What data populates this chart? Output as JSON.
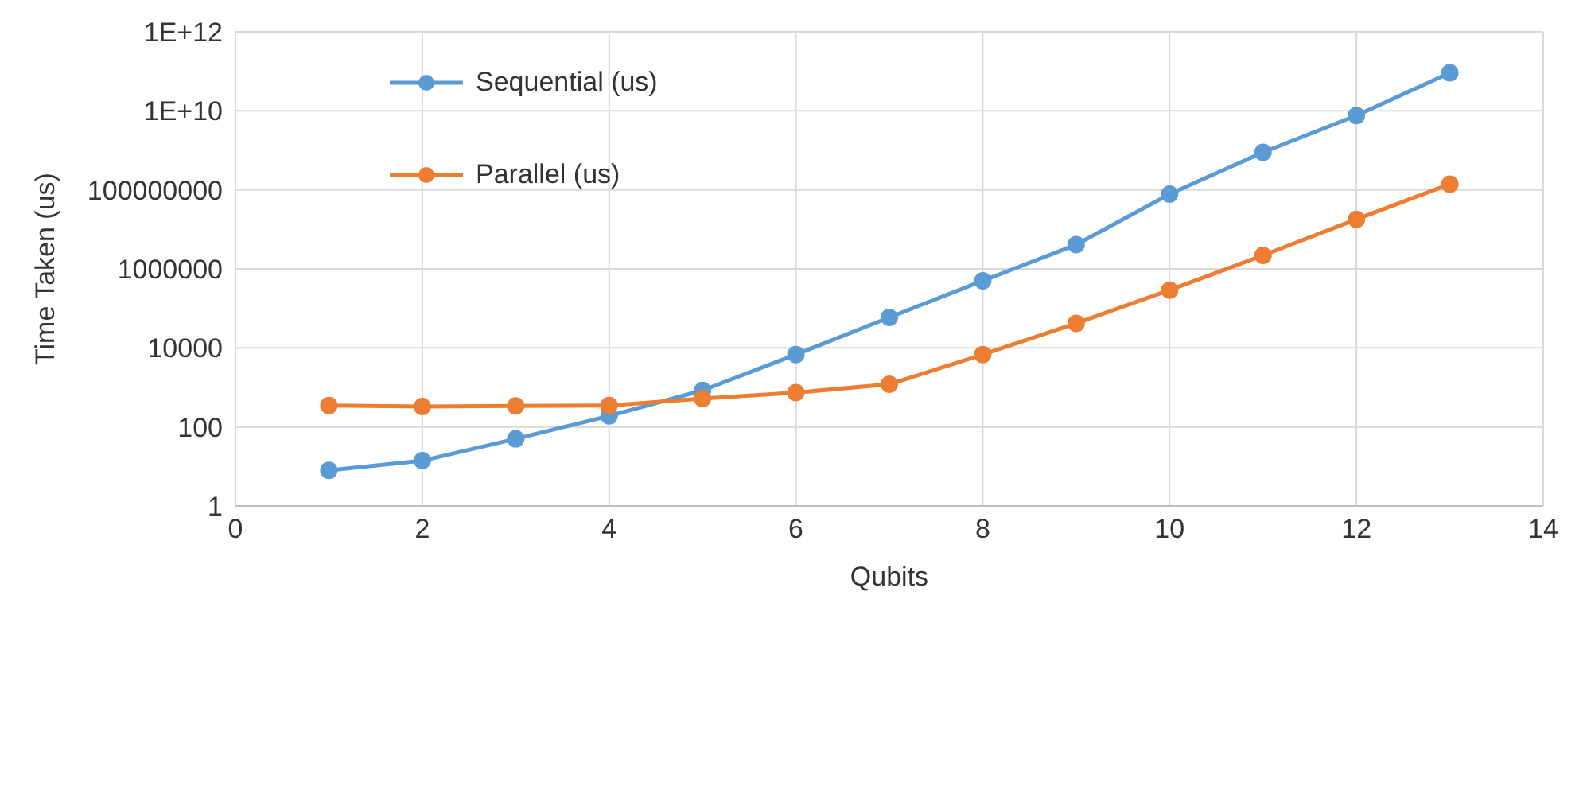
{
  "chart_data": {
    "type": "line",
    "xlabel": "Qubits",
    "ylabel": "Time Taken (us)",
    "x": [
      1,
      2,
      3,
      4,
      5,
      6,
      7,
      8,
      9,
      10,
      11,
      12,
      13
    ],
    "series": [
      {
        "name": "Sequential (us)",
        "color": "#5b9bd5",
        "values": [
          8,
          14,
          50,
          190,
          840,
          6800,
          59000,
          500000,
          4100000,
          78000000,
          890000000,
          7600000000,
          92000000000
        ]
      },
      {
        "name": "Parallel (us)",
        "color": "#ed7d31",
        "values": [
          350,
          330,
          340,
          350,
          520,
          740,
          1200,
          6800,
          42000,
          290000,
          2200000,
          18000000,
          140000000
        ]
      }
    ],
    "log": "y",
    "xlim": [
      0,
      14
    ],
    "xticks": [
      0,
      2,
      4,
      6,
      8,
      10,
      12,
      14
    ],
    "ylim": [
      1,
      1000000000000
    ],
    "yticks": [
      1,
      100,
      10000,
      1000000,
      100000000,
      {
        "value": 10000000000,
        "label": "1E+10"
      },
      {
        "value": 1000000000000,
        "label": "1E+12"
      }
    ],
    "grid": true,
    "legend": "top left",
    "marker": "circle",
    "line_style": "solid"
  }
}
